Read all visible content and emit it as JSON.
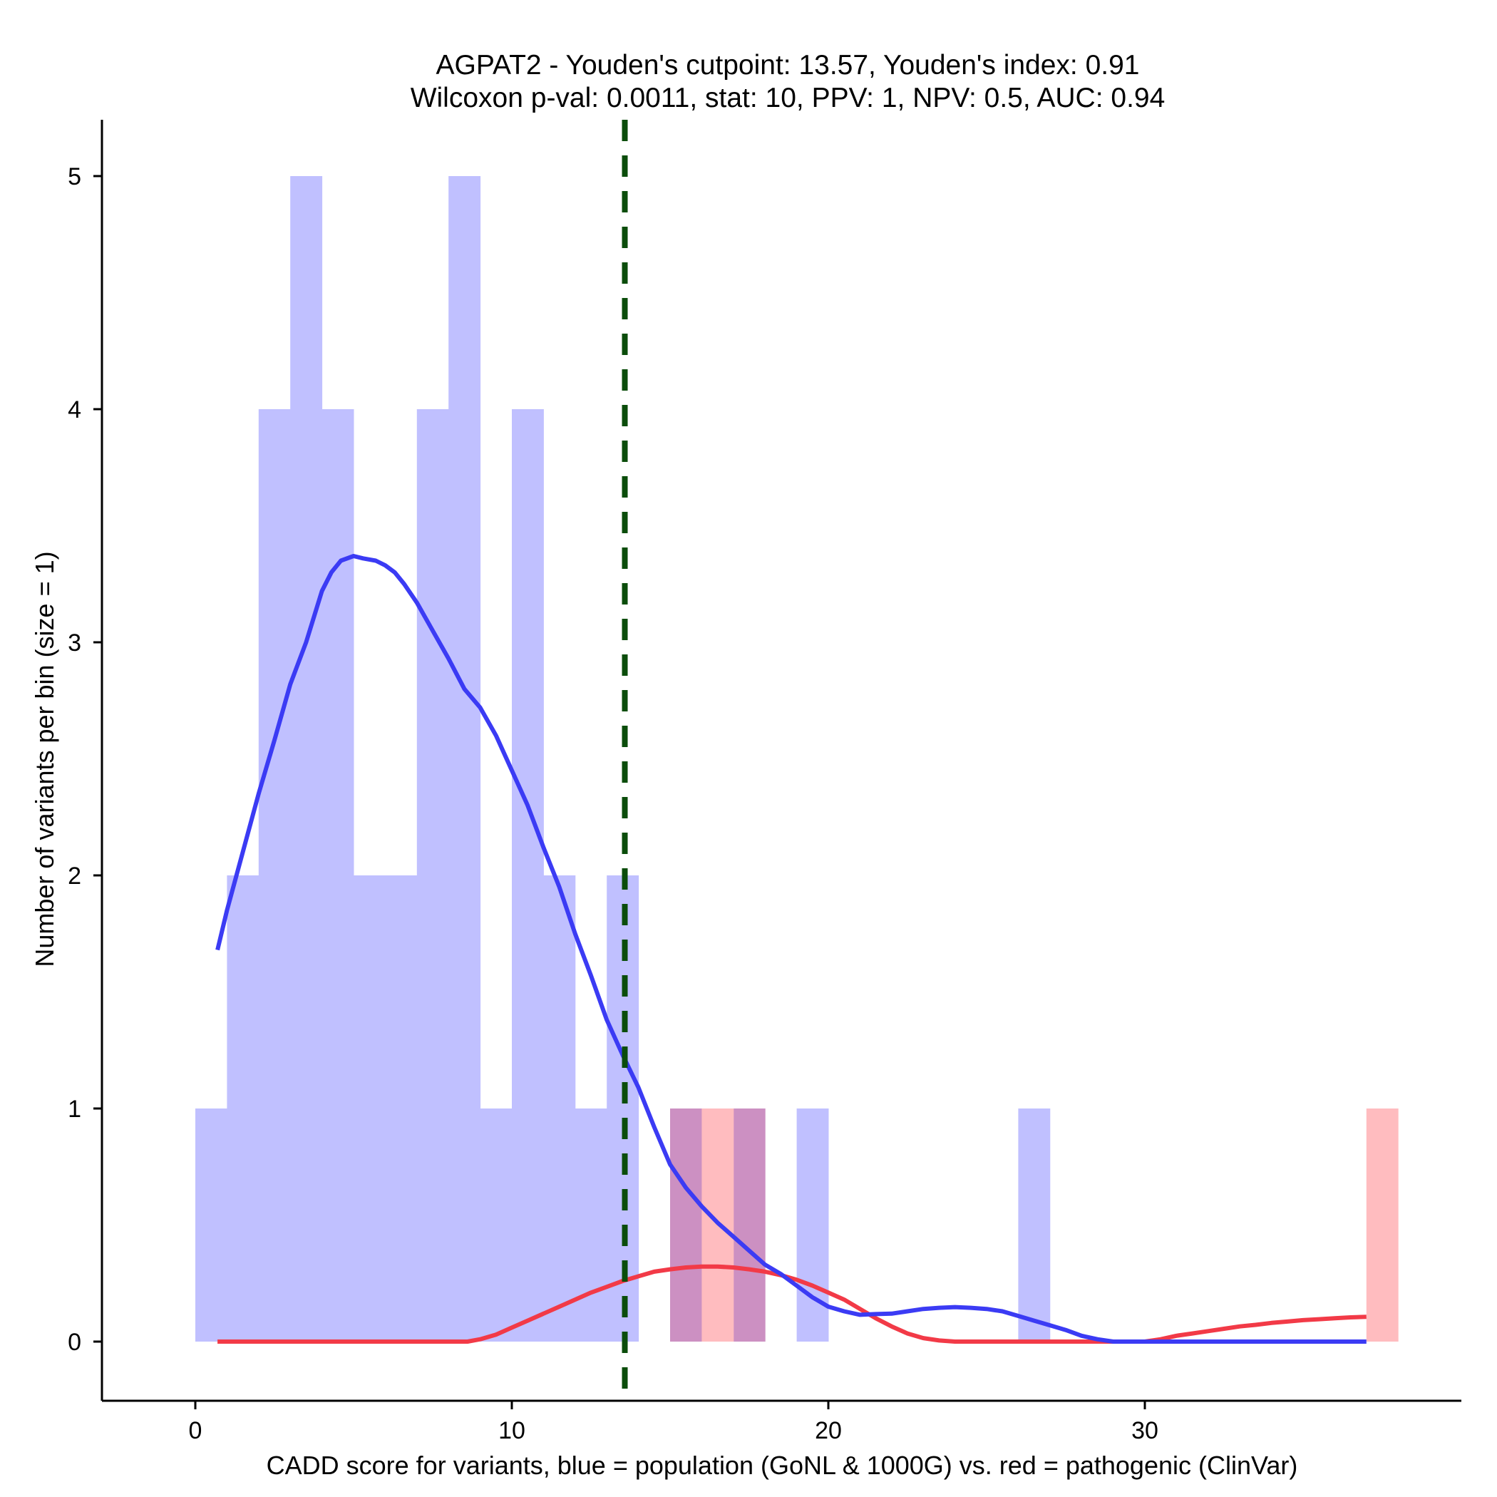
{
  "chart_data": {
    "type": "histogram-density",
    "title_line1": "AGPAT2 - Youden's cutpoint: 13.57, Youden's index: 0.91",
    "title_line2": "Wilcoxon p-val: 0.0011, stat: 10, PPV: 1, NPV: 0.5, AUC: 0.94",
    "xlabel": "CADD score for variants, blue = population (GoNL & 1000G) vs. red = pathogenic (ClinVar)",
    "ylabel": "Number of variants per bin (size = 1)",
    "xlim": [
      -3,
      40
    ],
    "ylim": [
      -0.25,
      5.25
    ],
    "xticks": [
      0,
      10,
      20,
      30
    ],
    "xtick_labels": [
      "0",
      "10",
      "20",
      "30"
    ],
    "yticks": [
      0,
      1,
      2,
      3,
      4,
      5
    ],
    "ytick_labels": [
      "0",
      "1",
      "2",
      "3",
      "4",
      "5"
    ],
    "cutpoint": 13.57,
    "bin_width": 1,
    "population_bins": [
      {
        "x": 0,
        "count": 1
      },
      {
        "x": 1,
        "count": 2
      },
      {
        "x": 2,
        "count": 4
      },
      {
        "x": 3,
        "count": 5
      },
      {
        "x": 4,
        "count": 4
      },
      {
        "x": 5,
        "count": 2
      },
      {
        "x": 6,
        "count": 2
      },
      {
        "x": 7,
        "count": 4
      },
      {
        "x": 8,
        "count": 5
      },
      {
        "x": 9,
        "count": 1
      },
      {
        "x": 10,
        "count": 4
      },
      {
        "x": 11,
        "count": 2
      },
      {
        "x": 12,
        "count": 1
      },
      {
        "x": 13,
        "count": 2
      },
      {
        "x": 15,
        "count": 1
      },
      {
        "x": 17,
        "count": 1
      },
      {
        "x": 19,
        "count": 1
      },
      {
        "x": 26,
        "count": 1
      }
    ],
    "pathogenic_bins": [
      {
        "x": 15,
        "count": 1
      },
      {
        "x": 16,
        "count": 1
      },
      {
        "x": 17,
        "count": 1
      },
      {
        "x": 37,
        "count": 1
      }
    ],
    "population_density": {
      "x": [
        0.7,
        1.0,
        1.5,
        2.0,
        2.5,
        3.0,
        3.5,
        4.0,
        4.3,
        4.6,
        5.0,
        5.3,
        5.7,
        6.0,
        6.3,
        6.6,
        7.0,
        7.5,
        8.0,
        8.5,
        9.0,
        9.5,
        10.0,
        10.5,
        11.0,
        11.5,
        12.0,
        12.5,
        13.0,
        13.5,
        14.0,
        14.5,
        15.0,
        15.5,
        16.0,
        16.5,
        17.0,
        17.5,
        18.0,
        18.5,
        19.0,
        19.5,
        20.0,
        20.5,
        21.0,
        21.5,
        22.0,
        22.5,
        23.0,
        23.5,
        24.0,
        24.5,
        25.0,
        25.5,
        26.0,
        26.5,
        27.0,
        27.5,
        28.0,
        28.5,
        29.0,
        29.5,
        30.0,
        30.5,
        31.0,
        31.5,
        32.0,
        33.0,
        34.0,
        35.0,
        36.0,
        37.0
      ],
      "y": [
        1.68,
        1.85,
        2.1,
        2.35,
        2.58,
        2.82,
        3.0,
        3.22,
        3.3,
        3.35,
        3.37,
        3.36,
        3.35,
        3.33,
        3.3,
        3.25,
        3.17,
        3.05,
        2.93,
        2.8,
        2.72,
        2.6,
        2.45,
        2.3,
        2.12,
        1.95,
        1.75,
        1.57,
        1.38,
        1.23,
        1.09,
        0.92,
        0.76,
        0.66,
        0.58,
        0.51,
        0.45,
        0.39,
        0.33,
        0.29,
        0.24,
        0.19,
        0.15,
        0.13,
        0.115,
        0.118,
        0.12,
        0.13,
        0.14,
        0.145,
        0.148,
        0.145,
        0.14,
        0.13,
        0.11,
        0.09,
        0.07,
        0.05,
        0.025,
        0.01,
        0.0,
        0.0,
        0.0,
        0.0,
        0.0,
        0.0,
        0.0,
        0.0,
        0.0,
        0.0,
        0.0,
        0.0
      ]
    },
    "pathogenic_density": {
      "x": [
        0.7,
        2.0,
        4.0,
        6.0,
        8.0,
        8.6,
        9.0,
        9.5,
        10.0,
        10.5,
        11.0,
        11.5,
        12.0,
        12.5,
        13.0,
        13.5,
        14.0,
        14.5,
        15.0,
        15.5,
        16.0,
        16.5,
        17.0,
        17.5,
        18.0,
        18.5,
        19.0,
        19.5,
        20.0,
        20.5,
        21.0,
        21.5,
        22.0,
        22.5,
        23.0,
        23.5,
        24.0,
        24.5,
        25.0,
        26.0,
        27.0,
        28.0,
        29.0,
        30.0,
        30.5,
        31.0,
        31.5,
        32.0,
        32.5,
        33.0,
        33.5,
        34.0,
        34.5,
        35.0,
        35.5,
        36.0,
        36.5,
        37.0
      ],
      "y": [
        0,
        0,
        0,
        0,
        0,
        0,
        0.01,
        0.03,
        0.06,
        0.09,
        0.12,
        0.15,
        0.18,
        0.21,
        0.235,
        0.26,
        0.28,
        0.3,
        0.31,
        0.318,
        0.322,
        0.322,
        0.318,
        0.31,
        0.3,
        0.285,
        0.265,
        0.24,
        0.21,
        0.18,
        0.14,
        0.1,
        0.065,
        0.035,
        0.015,
        0.005,
        0,
        0,
        0,
        0,
        0,
        0,
        0,
        0,
        0.01,
        0.025,
        0.035,
        0.045,
        0.055,
        0.065,
        0.072,
        0.08,
        0.086,
        0.092,
        0.096,
        0.1,
        0.104,
        0.106
      ]
    },
    "colors": {
      "population_bar": "#c0c0ff",
      "pathogenic_bar": "#ffbcbf",
      "overlap_bar": "#cc90c2",
      "population_line": "#3b3bf4",
      "pathogenic_line": "#f23a47",
      "cutpoint_line": "#0b4d0b"
    }
  }
}
